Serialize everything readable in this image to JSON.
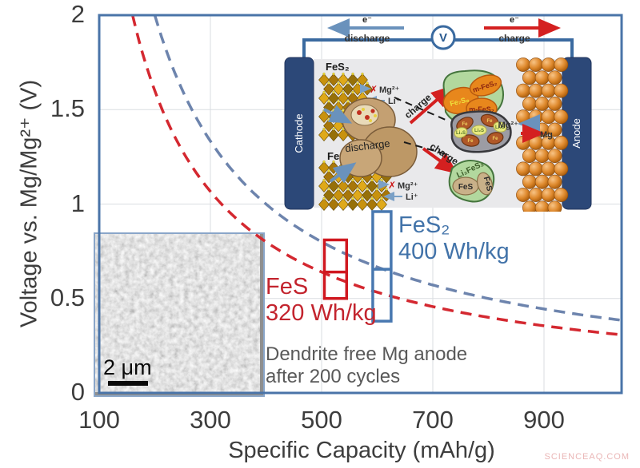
{
  "watermark": "SCIENCEAQ.COM",
  "chart_data": {
    "type": "line",
    "title": "",
    "xlabel": "Specific Capacity (mAh/g)",
    "ylabel": "Voltage vs. Mg/Mg²⁺ (V)",
    "xlim": [
      100,
      1040
    ],
    "ylim": [
      0,
      2
    ],
    "x_ticks": [
      100,
      300,
      500,
      700,
      900
    ],
    "y_ticks": [
      0,
      0.5,
      1,
      1.5,
      2
    ],
    "grid": true,
    "series": [
      {
        "name": "FeS iso-energy curve",
        "kind": "iso-energy",
        "energy_wh_kg": 320,
        "color": "#d42830",
        "style": "dashed"
      },
      {
        "name": "FeS2 iso-energy curve",
        "kind": "iso-energy",
        "energy_wh_kg": 400,
        "color": "#6d84ad",
        "style": "dashed"
      }
    ],
    "regions": [
      {
        "label": "FeS",
        "sublabel": "320 Wh/kg",
        "color": "#d01820",
        "capacity_range": [
          505,
          545
        ],
        "voltage_range": [
          0.5,
          0.81
        ],
        "divider_voltage": 0.64
      },
      {
        "label": "FeS₂",
        "sublabel": "400 Wh/kg",
        "color": "#4878b0",
        "capacity_range": [
          592,
          625
        ],
        "voltage_range": [
          0.38,
          0.96
        ],
        "divider_voltage": 0.655
      }
    ]
  },
  "axis": {
    "x_title": "Specific Capacity (mAh/g)",
    "y_title": "Voltage vs. Mg/Mg²⁺ (V)"
  },
  "annotations": {
    "caption_line1": "Dendrite free Mg anode",
    "caption_line2": "after 200 cycles",
    "scalebar": "2 μm"
  },
  "inset": {
    "circuit": {
      "electron": "e⁻",
      "discharge": "discharge",
      "charge": "charge",
      "voltmeter": "V"
    },
    "electrodes": {
      "cathode": "Cathode",
      "anode": "Anode"
    },
    "materials": {
      "fes2": "FeS₂",
      "fes": "FeS"
    },
    "ions": {
      "blocked": "✗",
      "mg": "Mg²⁺",
      "li": "Li⁺"
    },
    "reactions": {
      "discharge": "discharge",
      "charge": "charge"
    },
    "products_charge": {
      "o1": "Fe₇S₈",
      "o2": "m-FeS₂",
      "o3": "m-FeS₂"
    },
    "products_li": {
      "fe": "Fe",
      "li2s": "Li₂S"
    },
    "products_discharge": {
      "t1": "FeS",
      "t2": "FeS",
      "t3": "Li₂FeS₂"
    },
    "anode_side": {
      "mg_ion": "Mg²⁺",
      "mg_metal": "Mg"
    }
  }
}
